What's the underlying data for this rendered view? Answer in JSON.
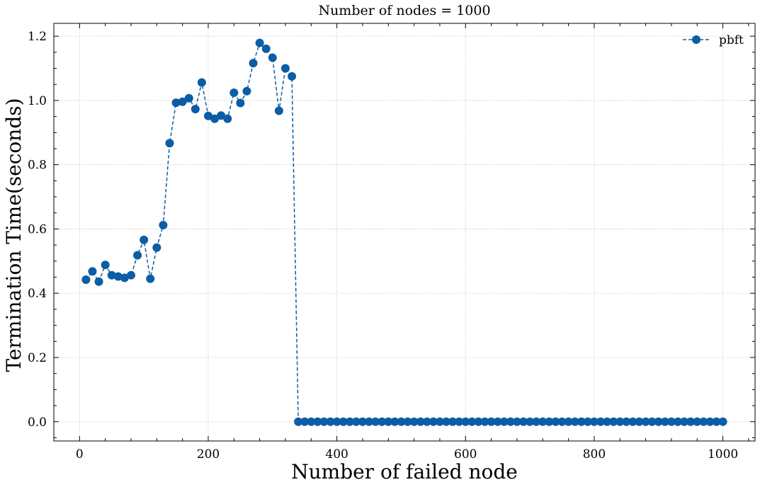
{
  "chart_data": {
    "type": "line",
    "title": "Number of nodes = 1000",
    "xlabel": "Number of failed node",
    "ylabel": "Termination Time(seconds)",
    "xlim": [
      -40,
      1050
    ],
    "ylim": [
      -0.06,
      1.24
    ],
    "xticks": [
      0,
      200,
      400,
      600,
      800,
      1000
    ],
    "yticks": [
      0.0,
      0.2,
      0.4,
      0.6,
      0.8,
      1.0,
      1.2
    ],
    "xtick_labels": [
      "0",
      "200",
      "400",
      "600",
      "800",
      "1000"
    ],
    "ytick_labels": [
      "0.0",
      "0.2",
      "0.4",
      "0.6",
      "0.8",
      "1.0",
      "1.2"
    ],
    "grid": true,
    "legend_position": "top-right",
    "series": [
      {
        "name": "pbft",
        "color": "#0c5da5",
        "line_style": "dashed",
        "marker": "circle",
        "x": [
          10,
          20,
          30,
          40,
          50,
          60,
          70,
          80,
          90,
          100,
          110,
          120,
          130,
          140,
          150,
          160,
          170,
          180,
          190,
          200,
          210,
          220,
          230,
          240,
          250,
          260,
          270,
          280,
          290,
          300,
          310,
          320,
          330,
          340,
          350,
          360,
          370,
          380,
          390,
          400,
          410,
          420,
          430,
          440,
          450,
          460,
          470,
          480,
          490,
          500,
          510,
          520,
          530,
          540,
          550,
          560,
          570,
          580,
          590,
          600,
          610,
          620,
          630,
          640,
          650,
          660,
          670,
          680,
          690,
          700,
          710,
          720,
          730,
          740,
          750,
          760,
          770,
          780,
          790,
          800,
          810,
          820,
          830,
          840,
          850,
          860,
          870,
          880,
          890,
          900,
          910,
          920,
          930,
          940,
          950,
          960,
          970,
          980,
          990,
          1000
        ],
        "y": [
          0.442,
          0.468,
          0.436,
          0.488,
          0.456,
          0.452,
          0.448,
          0.456,
          0.518,
          0.566,
          0.445,
          0.542,
          0.612,
          0.867,
          0.993,
          0.996,
          1.007,
          0.973,
          1.056,
          0.952,
          0.943,
          0.953,
          0.943,
          1.024,
          0.992,
          1.029,
          1.116,
          1.179,
          1.161,
          1.133,
          0.968,
          1.1,
          1.075,
          0,
          0,
          0,
          0,
          0,
          0,
          0,
          0,
          0,
          0,
          0,
          0,
          0,
          0,
          0,
          0,
          0,
          0,
          0,
          0,
          0,
          0,
          0,
          0,
          0,
          0,
          0,
          0,
          0,
          0,
          0,
          0,
          0,
          0,
          0,
          0,
          0,
          0,
          0,
          0,
          0,
          0,
          0,
          0,
          0,
          0,
          0,
          0,
          0,
          0,
          0,
          0,
          0,
          0,
          0,
          0,
          0,
          0,
          0,
          0,
          0,
          0,
          0,
          0,
          0,
          0,
          0
        ]
      }
    ]
  }
}
